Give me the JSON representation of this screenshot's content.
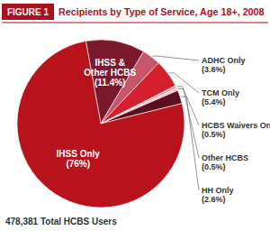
{
  "chart_data": {
    "type": "pie",
    "figure_label": "FIGURE 1",
    "title": "Recipients by Type of Service, Age 18+, 2008",
    "categories": [
      "IHSS & Other HCBS",
      "ADHC Only",
      "TCM Only",
      "HCBS Waivers Only",
      "Other HCBS",
      "HH Only",
      "IHSS Only"
    ],
    "values": [
      11.4,
      3.6,
      5.4,
      0.5,
      0.5,
      2.6,
      76
    ],
    "value_labels": [
      "(11.4%)",
      "(3.6%)",
      "(5.4%)",
      "(0.5%)",
      "(0.5%)",
      "(2.6%)",
      "(76%)"
    ],
    "colors": [
      "#7b1a2c",
      "#c8566a",
      "#d3202c",
      "#eb9aa4",
      "#f4c4c8",
      "#5c0f1c",
      "#b8121d"
    ],
    "data_labels": true,
    "annotations": [
      "478,381 Total HCBS Users"
    ]
  }
}
